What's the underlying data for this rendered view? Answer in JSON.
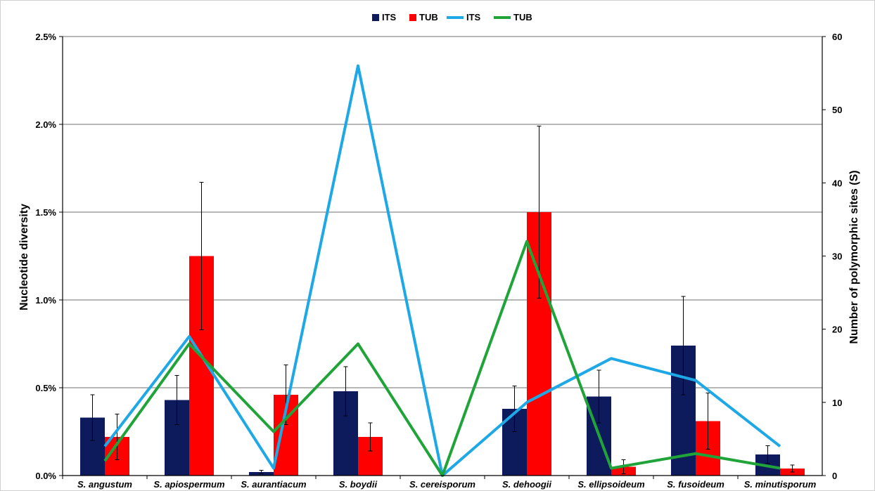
{
  "chart_data": {
    "type": "bar",
    "categories": [
      "S. angustum",
      "S. apiospermum",
      "S. aurantiacum",
      "S. boydii",
      "S. cereisporum",
      "S. dehoogii",
      "S. ellipsoideum",
      "S. fusoideum",
      "S. minutisporum"
    ],
    "ylabel": "Nucleotide diversity",
    "y2label": "Number of polymorphic sites (S)",
    "ylim": [
      0,
      0.025
    ],
    "y2lim": [
      0,
      60
    ],
    "y_ticks": [
      "0.0%",
      "0.5%",
      "1.0%",
      "1.5%",
      "2.0%",
      "2.5%"
    ],
    "y2_ticks": [
      "0",
      "10",
      "20",
      "30",
      "40",
      "50",
      "60"
    ],
    "grid": true,
    "legend_position": "top",
    "series": [
      {
        "name": "ITS",
        "kind": "bar",
        "axis": "left",
        "color": "#0d1a5c",
        "values": [
          0.0033,
          0.0043,
          0.0002,
          0.0048,
          0.0,
          0.0038,
          0.0045,
          0.0074,
          0.0012
        ],
        "error": [
          0.0013,
          0.0014,
          0.0001,
          0.0014,
          0.0,
          0.0013,
          0.0015,
          0.0028,
          0.0005
        ]
      },
      {
        "name": "TUB",
        "kind": "bar",
        "axis": "left",
        "color": "#ff0000",
        "values": [
          0.0022,
          0.0125,
          0.0046,
          0.0022,
          0.0,
          0.015,
          0.0005,
          0.0031,
          0.0004
        ],
        "error": [
          0.0013,
          0.0042,
          0.0017,
          0.0008,
          0.0,
          0.0049,
          0.0004,
          0.0016,
          0.0002
        ]
      },
      {
        "name": "ITS",
        "kind": "line",
        "axis": "right",
        "color": "#1ea8e6",
        "values": [
          4,
          19,
          1,
          56,
          0,
          10,
          16,
          13,
          4
        ]
      },
      {
        "name": "TUB",
        "kind": "line",
        "axis": "right",
        "color": "#20a43a",
        "values": [
          2,
          18,
          6,
          18,
          0,
          32,
          1,
          3,
          1
        ]
      }
    ]
  }
}
